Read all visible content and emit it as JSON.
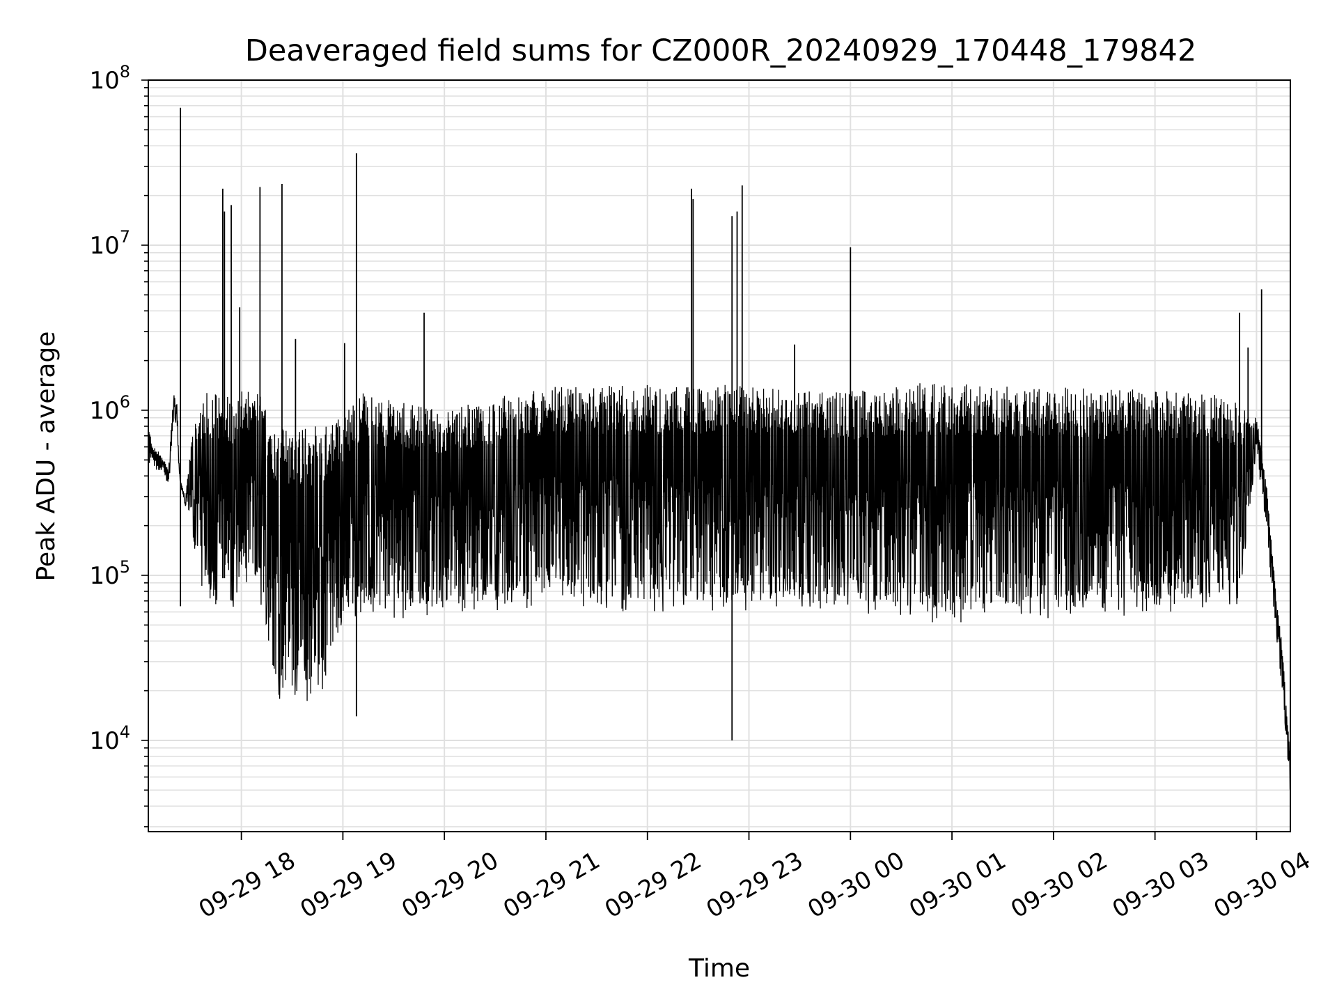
{
  "chart_data": {
    "type": "line",
    "title": "Deaveraged field sums for CZ000R_20240929_170448_179842",
    "xlabel": "Time",
    "ylabel": "Peak ADU - average",
    "y_scale": "log",
    "ylim": [
      2800,
      100000000
    ],
    "xlim": [
      "2024-09-29 17:05",
      "2024-09-30 04:20"
    ],
    "grid": true,
    "line_color": "#000000",
    "grid_color": "#e0e0e0",
    "x_ticks": [
      {
        "value": "2024-09-29 18:00",
        "label": "09-29 18"
      },
      {
        "value": "2024-09-29 19:00",
        "label": "09-29 19"
      },
      {
        "value": "2024-09-29 20:00",
        "label": "09-29 20"
      },
      {
        "value": "2024-09-29 21:00",
        "label": "09-29 21"
      },
      {
        "value": "2024-09-29 22:00",
        "label": "09-29 22"
      },
      {
        "value": "2024-09-29 23:00",
        "label": "09-29 23"
      },
      {
        "value": "2024-09-30 00:00",
        "label": "09-30 00"
      },
      {
        "value": "2024-09-30 01:00",
        "label": "09-30 01"
      },
      {
        "value": "2024-09-30 02:00",
        "label": "09-30 02"
      },
      {
        "value": "2024-09-30 03:00",
        "label": "09-30 03"
      },
      {
        "value": "2024-09-30 04:00",
        "label": "09-30 04"
      }
    ],
    "y_ticks": [
      {
        "value": 10000,
        "base": "10",
        "exp": "4"
      },
      {
        "value": 100000,
        "base": "10",
        "exp": "5"
      },
      {
        "value": 1000000,
        "base": "10",
        "exp": "6"
      },
      {
        "value": 10000000,
        "base": "10",
        "exp": "7"
      },
      {
        "value": 100000000,
        "base": "10",
        "exp": "8"
      }
    ],
    "series": [
      {
        "x": [
          "2024-09-29 17:05",
          "2024-09-29 17:08",
          "2024-09-29 17:12",
          "2024-09-29 17:14",
          "2024-09-29 17:17",
          "2024-09-29 17:20",
          "2024-09-29 17:22",
          "2024-09-29 17:23",
          "2024-09-29 17:24",
          "2024-09-29 17:27",
          "2024-09-29 17:30",
          "2024-09-29 17:33",
          "2024-09-29 17:37",
          "2024-09-29 17:40",
          "2024-09-29 17:45",
          "2024-09-29 17:50",
          "2024-09-29 17:55",
          "2024-09-29 18:00",
          "2024-09-29 18:10",
          "2024-09-29 18:20",
          "2024-09-29 18:30",
          "2024-09-29 18:40",
          "2024-09-29 18:50",
          "2024-09-29 19:00",
          "2024-09-29 19:10",
          "2024-09-29 19:20",
          "2024-09-29 19:40",
          "2024-09-29 20:00",
          "2024-09-29 20:30",
          "2024-09-29 21:00",
          "2024-09-29 21:30",
          "2024-09-29 22:00",
          "2024-09-29 22:30",
          "2024-09-29 23:00",
          "2024-09-29 23:30",
          "2024-09-30 00:00",
          "2024-09-30 00:30",
          "2024-09-30 01:00",
          "2024-09-30 01:30",
          "2024-09-30 02:00",
          "2024-09-30 02:30",
          "2024-09-30 03:00",
          "2024-09-30 03:30",
          "2024-09-30 03:50",
          "2024-09-30 04:00",
          "2024-09-30 04:03",
          "2024-09-30 04:06",
          "2024-09-30 04:09",
          "2024-09-30 04:12",
          "2024-09-30 04:15",
          "2024-09-30 04:18",
          "2024-09-30 04:20"
        ],
        "upper": [
          800000,
          600000,
          550000,
          500000,
          450000,
          1300000,
          1100000,
          500000,
          380000,
          290000,
          600000,
          1000000,
          1200000,
          1300000,
          1300000,
          1300000,
          1200000,
          1300000,
          1300000,
          850000,
          800000,
          800000,
          900000,
          900000,
          1300000,
          1200000,
          1100000,
          1000000,
          1200000,
          1400000,
          1400000,
          1450000,
          1400000,
          1450000,
          1350000,
          1300000,
          1450000,
          1500000,
          1400000,
          1400000,
          1350000,
          1350000,
          1300000,
          1100000,
          900000,
          600000,
          350000,
          150000,
          70000,
          40000,
          15000,
          8000
        ],
        "lower": [
          450000,
          420000,
          430000,
          420000,
          330000,
          900000,
          800000,
          450000,
          350000,
          260000,
          220000,
          120000,
          80000,
          70000,
          60000,
          60000,
          60000,
          80000,
          80000,
          18000,
          17000,
          17000,
          18000,
          55000,
          55000,
          55000,
          55000,
          60000,
          60000,
          65000,
          60000,
          60000,
          60000,
          60000,
          65000,
          60000,
          55000,
          50000,
          55000,
          55000,
          55000,
          60000,
          60000,
          60000,
          600000,
          300000,
          200000,
          80000,
          40000,
          20000,
          9000,
          4500
        ]
      }
    ],
    "spikes": [
      {
        "x": "2024-09-29 17:24",
        "y": 68000000,
        "low": 65000
      },
      {
        "x": "2024-09-29 17:49",
        "y": 22000000
      },
      {
        "x": "2024-09-29 17:50",
        "y": 16000000
      },
      {
        "x": "2024-09-29 17:54",
        "y": 17500000
      },
      {
        "x": "2024-09-29 17:59",
        "y": 4200000
      },
      {
        "x": "2024-09-29 18:11",
        "y": 22500000
      },
      {
        "x": "2024-09-29 18:24",
        "y": 23500000
      },
      {
        "x": "2024-09-29 18:32",
        "y": 2700000
      },
      {
        "x": "2024-09-29 19:01",
        "y": 2550000
      },
      {
        "x": "2024-09-29 19:08",
        "y": 36000000,
        "low": 14000
      },
      {
        "x": "2024-09-29 19:48",
        "y": 3900000
      },
      {
        "x": "2024-09-29 22:26",
        "y": 22000000
      },
      {
        "x": "2024-09-29 22:27",
        "y": 19000000
      },
      {
        "x": "2024-09-29 22:50",
        "y": 15000000,
        "low": 10000
      },
      {
        "x": "2024-09-29 22:53",
        "y": 16000000
      },
      {
        "x": "2024-09-29 22:56",
        "y": 23000000
      },
      {
        "x": "2024-09-29 23:27",
        "y": 2500000
      },
      {
        "x": "2024-09-30 00:00",
        "y": 9700000
      },
      {
        "x": "2024-09-30 03:50",
        "y": 3900000
      },
      {
        "x": "2024-09-30 03:55",
        "y": 2400000
      },
      {
        "x": "2024-09-30 04:03",
        "y": 5400000
      }
    ]
  }
}
